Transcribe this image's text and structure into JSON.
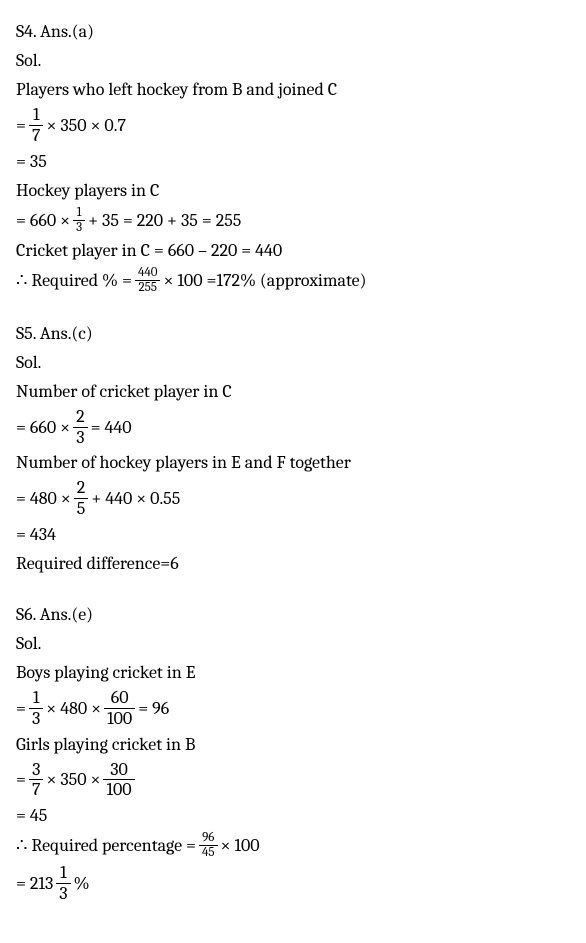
{
  "s4": {
    "header": "S4. Ans.(a)",
    "sol": "Sol.",
    "line1": "Players who left hockey from B and joined C",
    "eq1_pre": "= ",
    "eq1_num": "1",
    "eq1_den": "7",
    "eq1_post": " × 350 × 0.7",
    "eq2": "= 35",
    "line2": "Hockey players in C",
    "eq3_pre": "= 660 × ",
    "eq3_num": "1",
    "eq3_den": "3",
    "eq3_post": " + 35 = 220 + 35 = 255",
    "line3": "Cricket player in C = 660 – 220 = 440",
    "eq4_pre": "∴ Required % = ",
    "eq4_num": "440",
    "eq4_den": "255",
    "eq4_post": " × 100 =172% (approximate)"
  },
  "s5": {
    "header": "S5. Ans.(c)",
    "sol": "Sol.",
    "line1": "Number of cricket player in C",
    "eq1_pre": "= 660 × ",
    "eq1_num": "2",
    "eq1_den": "3",
    "eq1_post": " = 440",
    "line2": "Number of hockey players in E and F together",
    "eq2_pre": "= 480 × ",
    "eq2_num": "2",
    "eq2_den": "5",
    "eq2_post": " + 440 × 0.55",
    "eq3": "= 434",
    "line3": "Required difference=6"
  },
  "s6": {
    "header": "S6. Ans.(e)",
    "sol": "Sol.",
    "line1": "Boys playing cricket in E",
    "eq1_pre": "= ",
    "eq1_num1": "1",
    "eq1_den1": "3",
    "eq1_mid1": " × 480 × ",
    "eq1_num2": "60",
    "eq1_den2": "100",
    "eq1_post": " = 96",
    "line2": "Girls playing cricket in B",
    "eq2_pre": "= ",
    "eq2_num1": "3",
    "eq2_den1": "7",
    "eq2_mid1": " × 350 × ",
    "eq2_num2": "30",
    "eq2_den2": "100",
    "eq3": "= 45",
    "eq4_pre": "∴ Required percentage = ",
    "eq4_num": "96",
    "eq4_den": "45",
    "eq4_post": " × 100",
    "eq5_pre": "= 213",
    "eq5_num": "1",
    "eq5_den": "3",
    "eq5_post": "%"
  }
}
